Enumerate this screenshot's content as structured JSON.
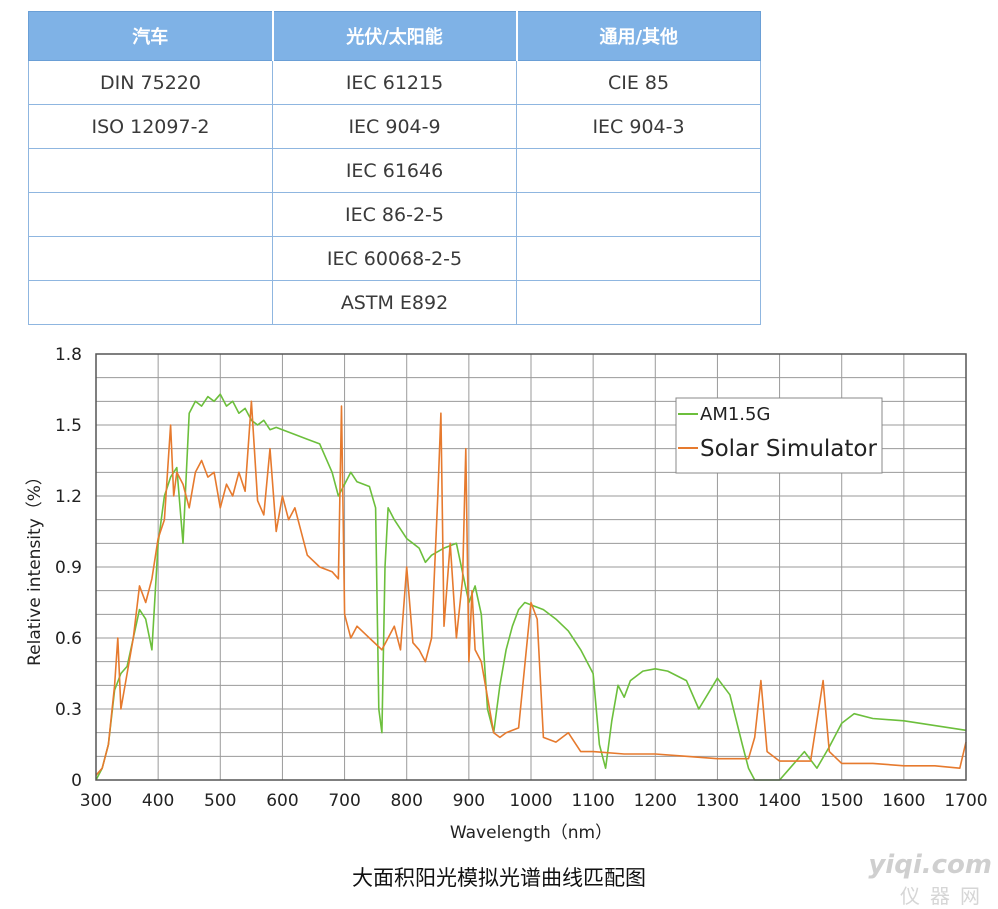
{
  "table": {
    "headers": [
      "汽车",
      "光伏/太阳能",
      "通用/其他"
    ],
    "rows": [
      [
        "DIN 75220",
        "IEC 61215",
        "CIE 85"
      ],
      [
        "ISO 12097-2",
        "IEC 904-9",
        "IEC 904-3"
      ],
      [
        "",
        "IEC 61646",
        ""
      ],
      [
        "",
        "IEC 86-2-5",
        ""
      ],
      [
        "",
        "IEC 60068-2-5",
        ""
      ],
      [
        "",
        "ASTM E892",
        ""
      ]
    ]
  },
  "chart_data": {
    "type": "line",
    "title": "",
    "xlabel": "Wavelength（nm）",
    "ylabel": "Relative intensity（%）",
    "xlim": [
      300,
      1700
    ],
    "ylim": [
      0,
      1.8
    ],
    "xticks": [
      300,
      400,
      500,
      600,
      700,
      800,
      900,
      1000,
      1100,
      1200,
      1300,
      1400,
      1500,
      1600,
      1700
    ],
    "yticks": [
      0,
      0.3,
      0.6,
      0.9,
      1.2,
      1.5,
      1.8
    ],
    "ytick_labels": [
      "0",
      "0.3",
      "0.6",
      "0.9",
      "1.2",
      "1.5",
      "1.8"
    ],
    "grid": true,
    "legend_position": "top-right",
    "series": [
      {
        "name": "AM1.5G",
        "color": "#6cbf3c",
        "x": [
          300,
          310,
          320,
          330,
          340,
          350,
          360,
          370,
          380,
          390,
          400,
          410,
          420,
          430,
          440,
          450,
          460,
          470,
          480,
          490,
          500,
          510,
          520,
          530,
          540,
          550,
          560,
          570,
          580,
          590,
          600,
          620,
          640,
          660,
          680,
          690,
          700,
          710,
          720,
          740,
          750,
          755,
          760,
          765,
          770,
          780,
          800,
          810,
          820,
          830,
          840,
          860,
          880,
          900,
          910,
          920,
          930,
          940,
          950,
          960,
          970,
          980,
          990,
          1000,
          1020,
          1040,
          1060,
          1080,
          1100,
          1110,
          1120,
          1130,
          1140,
          1150,
          1160,
          1180,
          1200,
          1220,
          1250,
          1270,
          1300,
          1320,
          1340,
          1350,
          1360,
          1380,
          1400,
          1420,
          1440,
          1460,
          1480,
          1500,
          1520,
          1550,
          1600,
          1650,
          1700
        ],
        "values": [
          0.0,
          0.05,
          0.15,
          0.38,
          0.45,
          0.48,
          0.6,
          0.72,
          0.68,
          0.55,
          1.0,
          1.2,
          1.28,
          1.32,
          1.0,
          1.55,
          1.6,
          1.58,
          1.62,
          1.6,
          1.63,
          1.58,
          1.6,
          1.55,
          1.57,
          1.52,
          1.5,
          1.52,
          1.48,
          1.49,
          1.48,
          1.46,
          1.44,
          1.42,
          1.3,
          1.2,
          1.25,
          1.3,
          1.26,
          1.24,
          1.15,
          0.3,
          0.2,
          0.9,
          1.15,
          1.1,
          1.02,
          1.0,
          0.98,
          0.92,
          0.95,
          0.98,
          1.0,
          0.75,
          0.82,
          0.7,
          0.3,
          0.2,
          0.4,
          0.55,
          0.65,
          0.72,
          0.75,
          0.74,
          0.72,
          0.68,
          0.63,
          0.55,
          0.45,
          0.15,
          0.05,
          0.25,
          0.4,
          0.35,
          0.42,
          0.46,
          0.47,
          0.46,
          0.42,
          0.3,
          0.43,
          0.36,
          0.15,
          0.05,
          0.0,
          0.0,
          0.0,
          0.06,
          0.12,
          0.05,
          0.14,
          0.24,
          0.28,
          0.26,
          0.25,
          0.23,
          0.21
        ]
      },
      {
        "name": "Solar Simulator",
        "color": "#e67a2e",
        "x": [
          300,
          310,
          320,
          330,
          335,
          340,
          350,
          360,
          370,
          380,
          390,
          400,
          410,
          420,
          425,
          430,
          440,
          450,
          460,
          470,
          480,
          490,
          500,
          510,
          520,
          530,
          540,
          550,
          560,
          570,
          580,
          590,
          600,
          610,
          620,
          640,
          660,
          680,
          690,
          695,
          700,
          710,
          720,
          740,
          760,
          780,
          790,
          800,
          810,
          820,
          830,
          840,
          850,
          855,
          860,
          870,
          880,
          890,
          895,
          900,
          905,
          910,
          920,
          930,
          940,
          950,
          960,
          980,
          1000,
          1010,
          1020,
          1040,
          1060,
          1080,
          1100,
          1150,
          1200,
          1250,
          1300,
          1350,
          1360,
          1370,
          1380,
          1400,
          1450,
          1470,
          1480,
          1500,
          1550,
          1600,
          1650,
          1690,
          1700
        ],
        "values": [
          0.02,
          0.05,
          0.15,
          0.4,
          0.6,
          0.3,
          0.45,
          0.6,
          0.82,
          0.75,
          0.85,
          1.02,
          1.1,
          1.5,
          1.2,
          1.3,
          1.25,
          1.15,
          1.3,
          1.35,
          1.28,
          1.3,
          1.15,
          1.25,
          1.2,
          1.3,
          1.22,
          1.6,
          1.18,
          1.12,
          1.4,
          1.05,
          1.2,
          1.1,
          1.15,
          0.95,
          0.9,
          0.88,
          0.85,
          1.58,
          0.7,
          0.6,
          0.65,
          0.6,
          0.55,
          0.65,
          0.55,
          0.9,
          0.58,
          0.55,
          0.5,
          0.6,
          1.2,
          1.55,
          0.65,
          1.0,
          0.6,
          0.85,
          1.4,
          0.5,
          0.8,
          0.55,
          0.5,
          0.35,
          0.2,
          0.18,
          0.2,
          0.22,
          0.75,
          0.68,
          0.18,
          0.16,
          0.2,
          0.12,
          0.12,
          0.11,
          0.11,
          0.1,
          0.09,
          0.09,
          0.18,
          0.42,
          0.12,
          0.08,
          0.08,
          0.42,
          0.12,
          0.07,
          0.07,
          0.06,
          0.06,
          0.05,
          0.16
        ]
      }
    ]
  },
  "caption": "大面积阳光模拟光谱曲线匹配图",
  "watermark": {
    "line1": "yiqi.com",
    "line2": "仪器网"
  }
}
